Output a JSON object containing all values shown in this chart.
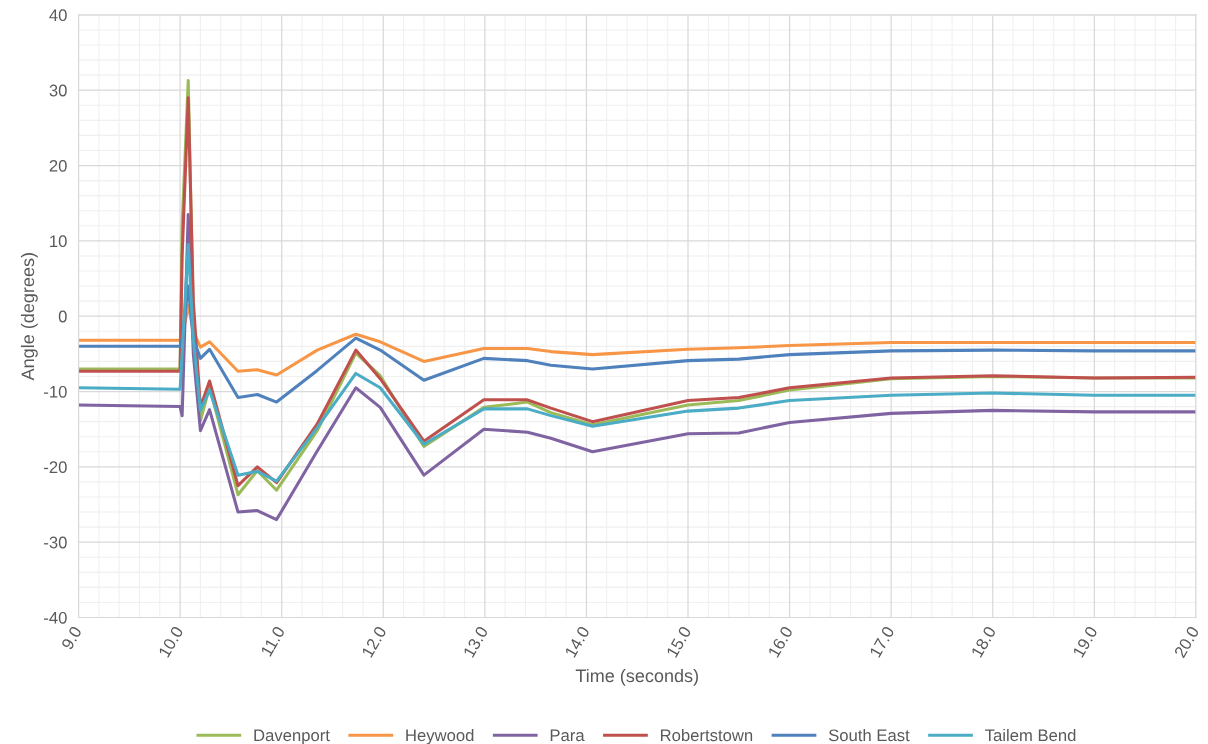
{
  "chart_data": {
    "type": "line",
    "xlabel": "Time (seconds)",
    "ylabel": "Angle (degrees)",
    "xlim": [
      9,
      20
    ],
    "ylim": [
      -40,
      40
    ],
    "xticks": [
      {
        "value": 9,
        "label": "9.0"
      },
      {
        "value": 10,
        "label": "10.0"
      },
      {
        "value": 11,
        "label": "11.0"
      },
      {
        "value": 12,
        "label": "12.0"
      },
      {
        "value": 13,
        "label": "13.0"
      },
      {
        "value": 14,
        "label": "14.0"
      },
      {
        "value": 15,
        "label": "15.0"
      },
      {
        "value": 16,
        "label": "16.0"
      },
      {
        "value": 17,
        "label": "17.0"
      },
      {
        "value": 18,
        "label": "18.0"
      },
      {
        "value": 19,
        "label": "19.0"
      },
      {
        "value": 20,
        "label": "20.0"
      }
    ],
    "yticks": [
      -40,
      -30,
      -20,
      -10,
      0,
      10,
      20,
      30,
      40
    ],
    "grid": true,
    "legend": "bottom",
    "marker": "none",
    "line_style": "solid",
    "x": [
      9.0,
      10.0,
      10.02,
      10.08,
      10.13,
      10.2,
      10.29,
      10.57,
      10.76,
      10.95,
      11.35,
      11.73,
      11.97,
      12.4,
      12.99,
      13.42,
      13.65,
      14.06,
      15.0,
      15.5,
      16.0,
      17.0,
      18.0,
      19.0,
      20.0
    ],
    "series": [
      {
        "name": "Davenport",
        "color": "#9bbb59",
        "values": [
          -7.0,
          -7.0,
          12.0,
          31.3,
          0.0,
          -13.9,
          -9.4,
          -23.7,
          -20.5,
          -23.1,
          -15.2,
          -4.9,
          -7.9,
          -17.3,
          -12.1,
          -11.4,
          -12.8,
          -14.4,
          -11.8,
          -11.2,
          -9.8,
          -8.3,
          -8.0,
          -8.2,
          -8.2
        ]
      },
      {
        "name": "Heywood",
        "color": "#f79646",
        "values": [
          -3.2,
          -3.2,
          -3.0,
          1.5,
          -2.0,
          -4.1,
          -3.4,
          -7.3,
          -7.1,
          -7.8,
          -4.5,
          -2.4,
          -3.4,
          -6.0,
          -4.3,
          -4.3,
          -4.7,
          -5.1,
          -4.4,
          -4.2,
          -3.9,
          -3.5,
          -3.5,
          -3.5,
          -3.5
        ]
      },
      {
        "name": "Para",
        "color": "#8064a2",
        "values": [
          -11.8,
          -12.0,
          -13.2,
          13.5,
          -5.0,
          -15.2,
          -12.4,
          -26.0,
          -25.8,
          -27.0,
          -17.9,
          -9.5,
          -12.1,
          -21.1,
          -15.0,
          -15.4,
          -16.2,
          -18.0,
          -15.6,
          -15.5,
          -14.1,
          -12.9,
          -12.5,
          -12.7,
          -12.7
        ]
      },
      {
        "name": "Robertstown",
        "color": "#c0504d",
        "values": [
          -7.3,
          -7.3,
          8.0,
          29.0,
          2.0,
          -12.1,
          -8.6,
          -22.5,
          -20.0,
          -22.1,
          -14.3,
          -4.5,
          -8.3,
          -16.6,
          -11.1,
          -11.1,
          -12.2,
          -14.0,
          -11.2,
          -10.8,
          -9.5,
          -8.2,
          -7.9,
          -8.2,
          -8.1
        ]
      },
      {
        "name": "South East",
        "color": "#4f81bd",
        "values": [
          -4.0,
          -4.0,
          -3.0,
          4.0,
          -3.0,
          -5.6,
          -4.4,
          -10.8,
          -10.4,
          -11.4,
          -7.2,
          -2.9,
          -4.5,
          -8.5,
          -5.6,
          -5.9,
          -6.5,
          -7.0,
          -5.9,
          -5.7,
          -5.1,
          -4.6,
          -4.5,
          -4.6,
          -4.6
        ]
      },
      {
        "name": "Tailem Bend",
        "color": "#4bacc6",
        "values": [
          -9.5,
          -9.7,
          -5.0,
          9.5,
          -3.0,
          -12.5,
          -9.8,
          -21.1,
          -20.6,
          -21.9,
          -14.8,
          -7.6,
          -9.5,
          -17.0,
          -12.3,
          -12.3,
          -13.2,
          -14.6,
          -12.6,
          -12.2,
          -11.2,
          -10.5,
          -10.2,
          -10.5,
          -10.5
        ]
      }
    ]
  }
}
